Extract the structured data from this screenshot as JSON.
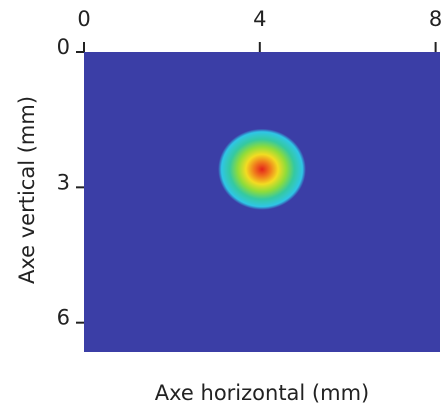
{
  "chart_data": {
    "type": "heatmap",
    "x_label": "Axe horizontal (mm)",
    "y_label": "Axe vertical (mm)",
    "xlim": [
      0,
      8.1
    ],
    "ylim": [
      0,
      6.65
    ],
    "y_inverted": true,
    "xticks": [
      0,
      4,
      8
    ],
    "yticks": [
      0,
      3,
      6
    ],
    "background": "#3b3ea6",
    "colormap": [
      "#e3231b",
      "#f07a1c",
      "#f2dc22",
      "#8fdc3a",
      "#35c9a0",
      "#2fc6e6"
    ],
    "spot": {
      "x": 4.05,
      "y": 2.6,
      "rx": 1.0,
      "ry": 0.9
    }
  }
}
